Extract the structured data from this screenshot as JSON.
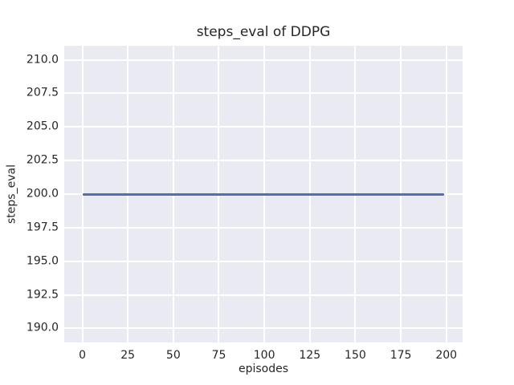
{
  "colors": {
    "figure_background": "#ffffff",
    "axes_background": "#eaeaf2",
    "grid": "#ffffff",
    "line": "#4c72b0",
    "text": "#262626"
  },
  "chart_data": {
    "type": "line",
    "title": "steps_eval of DDPG",
    "xlabel": "episodes",
    "ylabel": "steps_eval",
    "series": [
      {
        "name": "steps_eval",
        "x": [
          0,
          199
        ],
        "y": [
          200.0,
          200.0
        ],
        "color": "#4c72b0",
        "note": "constant value 200.0 for every episode from 0 to 199"
      }
    ],
    "xlim": [
      -9.95,
      208.95
    ],
    "ylim": [
      188.95,
      211.05
    ],
    "xticks": [
      0,
      25,
      50,
      75,
      100,
      125,
      150,
      175,
      200
    ],
    "xtick_labels": [
      "0",
      "25",
      "50",
      "75",
      "100",
      "125",
      "150",
      "175",
      "200"
    ],
    "yticks": [
      210.0,
      207.5,
      205.0,
      202.5,
      200.0,
      197.5,
      195.0,
      192.5,
      190.0
    ],
    "ytick_labels": [
      "210.0",
      "207.5",
      "205.0",
      "202.5",
      "200.0",
      "197.5",
      "195.0",
      "192.5",
      "190.0"
    ],
    "grid": true,
    "legend": false
  }
}
